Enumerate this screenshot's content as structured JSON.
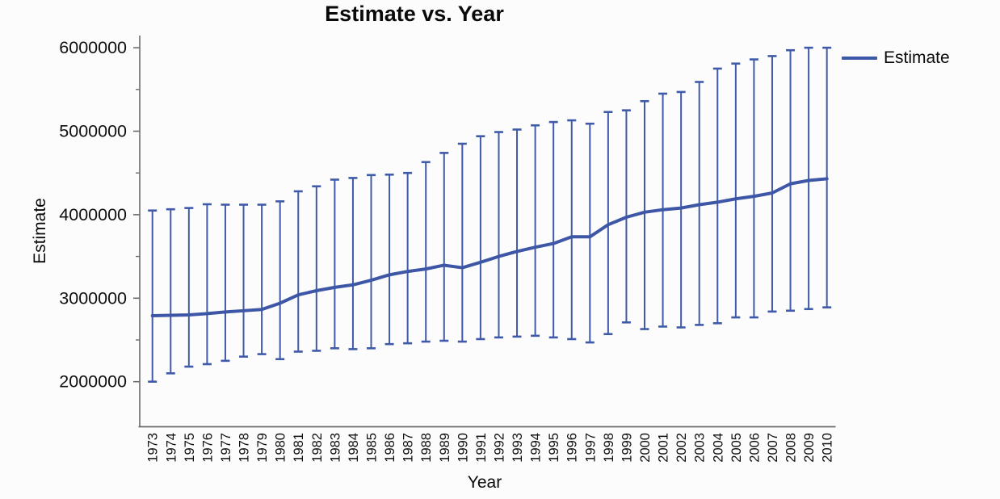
{
  "title": "Estimate vs. Year",
  "legend": {
    "label": "Estimate",
    "swatch_color": "#3d57a6"
  },
  "axes": {
    "x_label": "Year",
    "y_label": "Estimate"
  },
  "colors": {
    "line": "#3d57a6",
    "error_bar": "#3f5aa9",
    "axis": "#6b6b6b",
    "text": "#0a0a0a"
  },
  "chart_data": {
    "type": "line",
    "title": "Estimate vs. Year",
    "xlabel": "Year",
    "ylabel": "Estimate",
    "legend_entries": [
      "Estimate"
    ],
    "legend_position": "top-right",
    "grid": false,
    "error_bars": true,
    "ylim": [
      2000000,
      6000000
    ],
    "yticks": [
      2000000,
      3000000,
      4000000,
      5000000,
      6000000
    ],
    "x": [
      1973,
      1974,
      1975,
      1976,
      1977,
      1978,
      1979,
      1980,
      1981,
      1982,
      1983,
      1984,
      1985,
      1986,
      1987,
      1988,
      1989,
      1990,
      1991,
      1992,
      1993,
      1994,
      1995,
      1996,
      1997,
      1998,
      1999,
      2000,
      2001,
      2002,
      2003,
      2004,
      2005,
      2006,
      2007,
      2008,
      2009,
      2010
    ],
    "series": [
      {
        "name": "Estimate",
        "values": [
          2790000,
          2795000,
          2800000,
          2815000,
          2835000,
          2850000,
          2865000,
          2940000,
          3040000,
          3090000,
          3130000,
          3160000,
          3215000,
          3280000,
          3320000,
          3350000,
          3395000,
          3365000,
          3430000,
          3500000,
          3560000,
          3610000,
          3655000,
          3735000,
          3735000,
          3880000,
          3970000,
          4030000,
          4060000,
          4080000,
          4120000,
          4150000,
          4190000,
          4220000,
          4260000,
          4370000,
          4410000,
          4430000
        ],
        "upper": [
          4050000,
          4065000,
          4080000,
          4125000,
          4120000,
          4120000,
          4120000,
          4160000,
          4280000,
          4340000,
          4420000,
          4440000,
          4475000,
          4480000,
          4500000,
          4630000,
          4740000,
          4850000,
          4940000,
          4990000,
          5020000,
          5070000,
          5110000,
          5130000,
          5090000,
          5230000,
          5250000,
          5360000,
          5450000,
          5470000,
          5590000,
          5750000,
          5810000,
          5860000,
          5900000,
          5970000,
          6000000,
          6000000
        ],
        "lower": [
          2000000,
          2100000,
          2180000,
          2210000,
          2250000,
          2300000,
          2330000,
          2270000,
          2360000,
          2370000,
          2400000,
          2390000,
          2400000,
          2450000,
          2460000,
          2480000,
          2490000,
          2480000,
          2510000,
          2530000,
          2540000,
          2550000,
          2530000,
          2510000,
          2470000,
          2570000,
          2710000,
          2630000,
          2660000,
          2650000,
          2680000,
          2700000,
          2770000,
          2770000,
          2840000,
          2850000,
          2870000,
          2890000
        ]
      }
    ]
  }
}
